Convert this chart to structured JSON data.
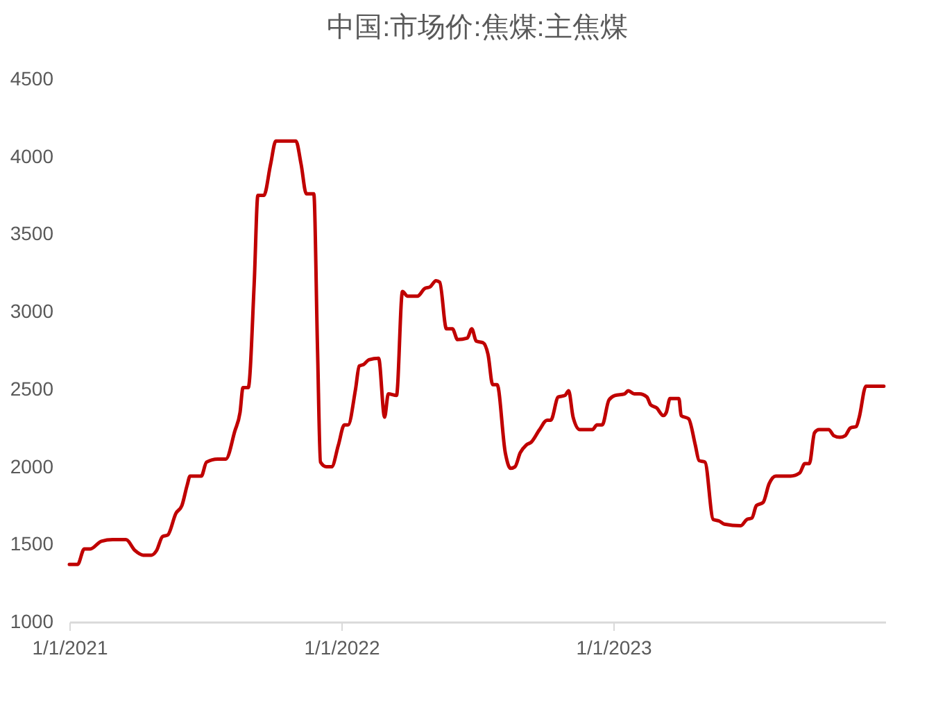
{
  "chart_data": {
    "type": "line",
    "title": "中国:市场价:焦煤:主焦煤",
    "x": [
      "2021-01-01",
      "2021-01-12",
      "2021-01-21",
      "2021-01-29",
      "2021-02-13",
      "2021-02-28",
      "2021-03-18",
      "2021-03-30",
      "2021-04-10",
      "2021-04-21",
      "2021-04-28",
      "2021-05-06",
      "2021-05-13",
      "2021-05-24",
      "2021-06-01",
      "2021-06-08",
      "2021-06-12",
      "2021-06-27",
      "2021-07-04",
      "2021-07-19",
      "2021-07-30",
      "2021-08-11",
      "2021-08-18",
      "2021-08-22",
      "2021-08-29",
      "2021-09-06",
      "2021-09-11",
      "2021-09-19",
      "2021-09-28",
      "2021-10-05",
      "2021-10-26",
      "2021-11-01",
      "2021-11-08",
      "2021-11-15",
      "2021-11-25",
      "2021-11-30",
      "2021-12-04",
      "2021-12-12",
      "2021-12-19",
      "2021-12-28",
      "2022-01-05",
      "2022-01-10",
      "2022-01-20",
      "2022-01-25",
      "2022-01-31",
      "2022-02-07",
      "2022-02-20",
      "2022-02-28",
      "2022-03-05",
      "2022-03-16",
      "2022-03-24",
      "2022-03-31",
      "2022-04-13",
      "2022-04-23",
      "2022-04-30",
      "2022-05-08",
      "2022-05-13",
      "2022-05-22",
      "2022-05-30",
      "2022-06-06",
      "2022-06-19",
      "2022-06-25",
      "2022-07-01",
      "2022-07-10",
      "2022-07-17",
      "2022-07-23",
      "2022-07-29",
      "2022-08-09",
      "2022-08-16",
      "2022-08-22",
      "2022-08-29",
      "2022-09-06",
      "2022-09-13",
      "2022-09-24",
      "2022-10-04",
      "2022-10-09",
      "2022-10-19",
      "2022-10-28",
      "2022-11-02",
      "2022-11-08",
      "2022-11-17",
      "2022-12-04",
      "2022-12-10",
      "2022-12-17",
      "2022-12-26",
      "2023-01-03",
      "2023-01-16",
      "2023-01-21",
      "2023-01-29",
      "2023-02-05",
      "2023-02-15",
      "2023-02-20",
      "2023-02-28",
      "2023-03-09",
      "2023-03-13",
      "2023-03-18",
      "2023-03-30",
      "2023-04-02",
      "2023-04-12",
      "2023-04-21",
      "2023-04-26",
      "2023-05-04",
      "2023-05-15",
      "2023-05-23",
      "2023-05-30",
      "2023-06-21",
      "2023-06-29",
      "2023-07-06",
      "2023-07-12",
      "2023-07-21",
      "2023-07-29",
      "2023-08-07",
      "2023-08-27",
      "2023-09-08",
      "2023-09-15",
      "2023-09-21",
      "2023-09-28",
      "2023-10-04",
      "2023-10-17",
      "2023-10-24",
      "2023-11-01",
      "2023-11-08",
      "2023-11-15",
      "2023-11-23",
      "2023-11-27",
      "2023-12-06",
      "2023-12-15",
      "2023-12-30"
    ],
    "series": [
      {
        "color": "#c00000",
        "values": [
          1370,
          1370,
          1470,
          1470,
          1520,
          1530,
          1530,
          1460,
          1430,
          1430,
          1460,
          1550,
          1560,
          1700,
          1750,
          1880,
          1940,
          1940,
          2030,
          2050,
          2050,
          2230,
          2350,
          2510,
          2510,
          3180,
          3750,
          3750,
          3950,
          4100,
          4100,
          4100,
          3950,
          3760,
          3760,
          2760,
          2030,
          2000,
          2000,
          2140,
          2270,
          2270,
          2500,
          2650,
          2660,
          2690,
          2700,
          2320,
          2470,
          2460,
          3130,
          3100,
          3100,
          3150,
          3160,
          3200,
          3190,
          2890,
          2890,
          2820,
          2830,
          2890,
          2810,
          2800,
          2720,
          2530,
          2530,
          2090,
          1990,
          2000,
          2090,
          2140,
          2160,
          2240,
          2300,
          2300,
          2450,
          2460,
          2490,
          2320,
          2240,
          2240,
          2270,
          2270,
          2430,
          2460,
          2470,
          2490,
          2470,
          2470,
          2450,
          2400,
          2380,
          2330,
          2350,
          2440,
          2440,
          2330,
          2310,
          2140,
          2040,
          2030,
          1660,
          1650,
          1630,
          1620,
          1660,
          1670,
          1750,
          1770,
          1890,
          1940,
          1940,
          1960,
          2020,
          2020,
          2220,
          2240,
          2240,
          2200,
          2190,
          2200,
          2250,
          2260,
          2320,
          2520,
          2520,
          2520
        ]
      }
    ],
    "xlim": [
      "2021-01-01",
      "2024-01-01"
    ],
    "xticks": [
      {
        "value": "2021-01-01",
        "label": "1/1/2021"
      },
      {
        "value": "2022-01-01",
        "label": "1/1/2022"
      },
      {
        "value": "2023-01-01",
        "label": "1/1/2023"
      }
    ],
    "ylim": [
      1000,
      4500
    ],
    "yticks": [
      1000,
      1500,
      2000,
      2500,
      3000,
      3500,
      4000,
      4500
    ],
    "grid": false,
    "line_style": "solid",
    "marker": "none"
  }
}
